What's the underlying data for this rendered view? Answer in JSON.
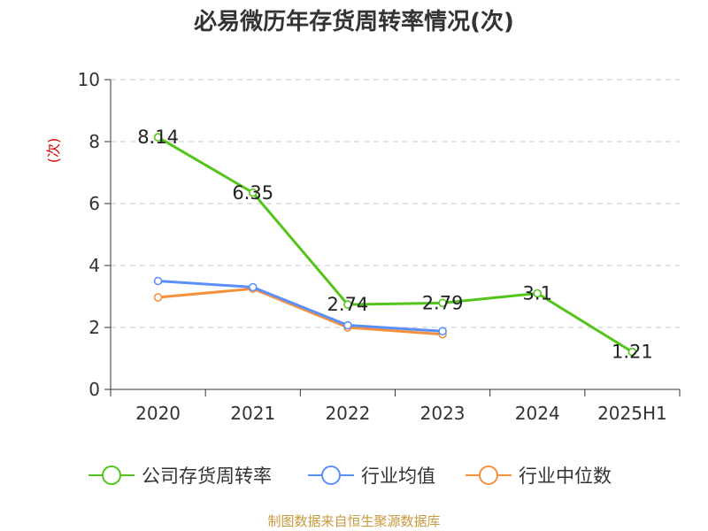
{
  "chart_data": {
    "type": "line",
    "title": "必易微历年存货周转率情况(次)",
    "ylabel": "(次)",
    "xlabel": "",
    "categories": [
      "2020",
      "2021",
      "2022",
      "2023",
      "2024",
      "2025H1"
    ],
    "ylim": [
      0,
      10
    ],
    "yticks": [
      "0",
      "2",
      "4",
      "6",
      "8",
      "10"
    ],
    "grid": true,
    "legend_position": "bottom",
    "series": [
      {
        "name": "公司存货周转率",
        "color": "#52c41a",
        "values": [
          8.14,
          6.35,
          2.74,
          2.79,
          3.1,
          1.21
        ],
        "labels": [
          "8.14",
          "6.35",
          "2.74",
          "2.79",
          "3.1",
          "1.21"
        ]
      },
      {
        "name": "行业均值",
        "color": "#5b8ff9",
        "values": [
          3.5,
          3.3,
          2.07,
          1.88,
          null,
          null
        ]
      },
      {
        "name": "行业中位数",
        "color": "#f6903d",
        "values": [
          2.97,
          3.25,
          2.0,
          1.78,
          null,
          null
        ]
      }
    ]
  },
  "source": "制图数据来自恒生聚源数据库"
}
